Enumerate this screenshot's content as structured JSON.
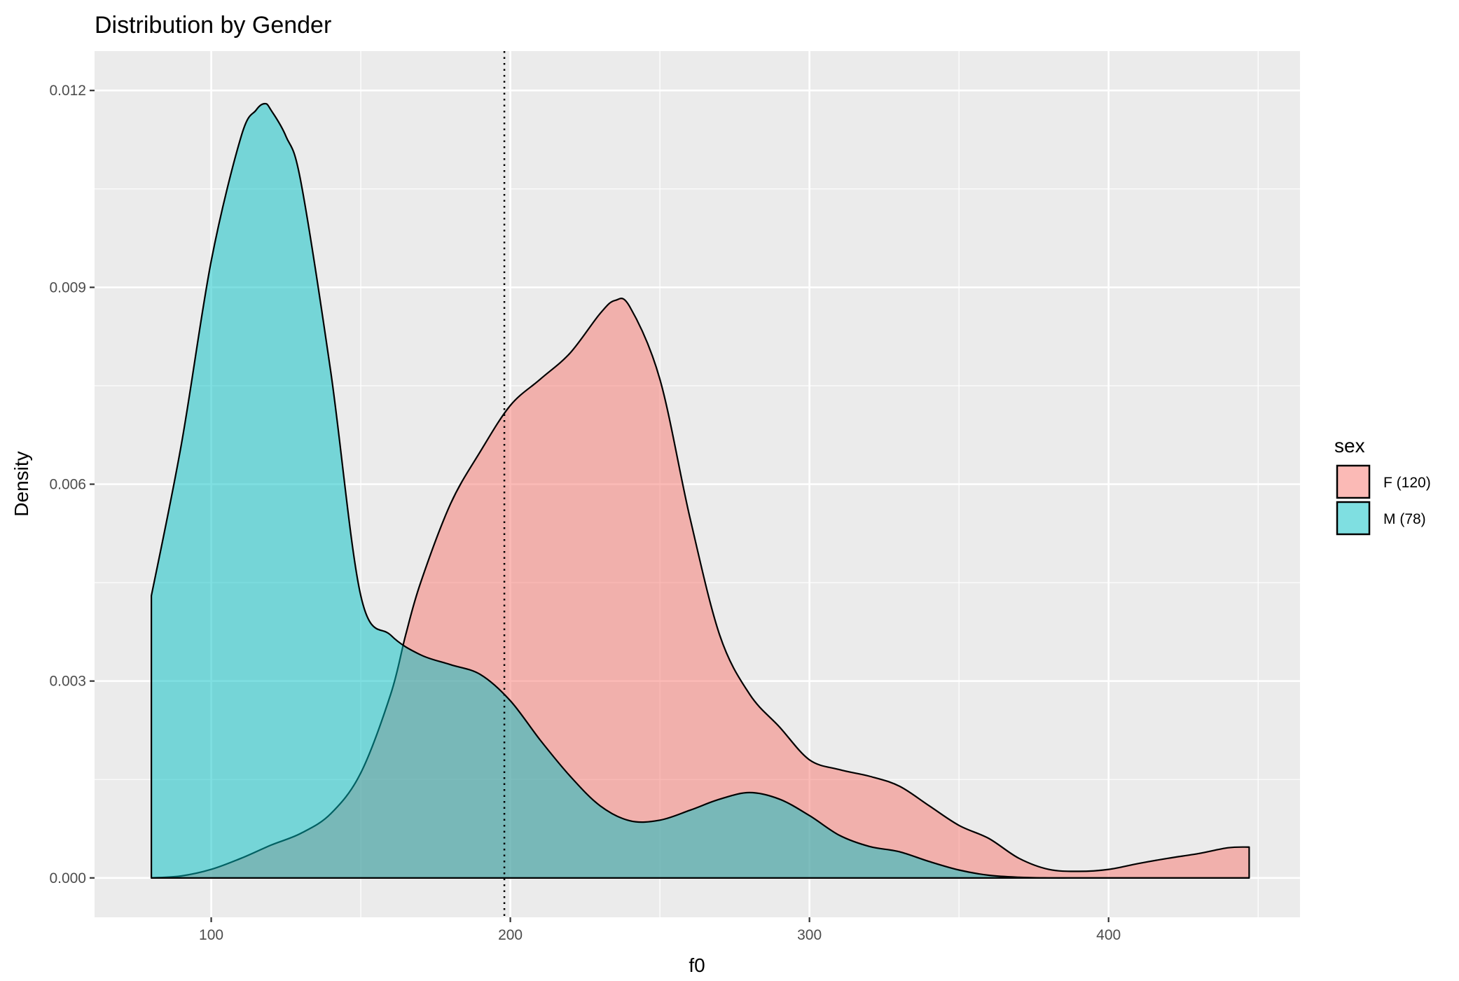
{
  "chart_data": {
    "type": "area",
    "title": "Distribution by Gender",
    "xlabel": "f0",
    "ylabel": "Density",
    "xlim": [
      61,
      464
    ],
    "ylim": [
      -0.0006,
      0.0126
    ],
    "x_ticks": [
      100,
      200,
      300,
      400
    ],
    "x_tick_labels": [
      "100",
      "200",
      "300",
      "400"
    ],
    "y_ticks": [
      0,
      0.003,
      0.006,
      0.009,
      0.012
    ],
    "y_tick_labels": [
      "0.000",
      "0.003",
      "0.006",
      "0.009",
      "0.012"
    ],
    "grid": true,
    "legend": {
      "title": "sex",
      "position": "right"
    },
    "reference_line": {
      "axis": "x",
      "value": 198,
      "style": "dotted"
    },
    "series": [
      {
        "name": "F (120)",
        "color": "#F8766D",
        "x": [
          80,
          90,
          100,
          110,
          120,
          130,
          140,
          150,
          160,
          165,
          170,
          180,
          190,
          200,
          210,
          220,
          230,
          235,
          240,
          250,
          260,
          270,
          280,
          290,
          300,
          310,
          320,
          330,
          340,
          350,
          360,
          370,
          380,
          390,
          400,
          410,
          420,
          430,
          440,
          447
        ],
        "values": [
          0.0,
          3e-05,
          0.00013,
          0.0003,
          0.0005,
          0.00068,
          0.00098,
          0.0016,
          0.0028,
          0.0037,
          0.0045,
          0.0057,
          0.0065,
          0.0072,
          0.0076,
          0.008,
          0.0086,
          0.0088,
          0.0087,
          0.0076,
          0.0055,
          0.0037,
          0.0028,
          0.0023,
          0.0018,
          0.00165,
          0.00155,
          0.0014,
          0.0011,
          0.0008,
          0.0006,
          0.0003,
          0.00013,
          0.0001,
          0.00013,
          0.00022,
          0.0003,
          0.00037,
          0.00046,
          0.00047
        ]
      },
      {
        "name": "M (78)",
        "color": "#00BFC4",
        "x": [
          80,
          90,
          100,
          110,
          115,
          118,
          120,
          125,
          130,
          140,
          150,
          160,
          170,
          180,
          190,
          200,
          210,
          220,
          230,
          240,
          250,
          260,
          270,
          280,
          290,
          300,
          310,
          320,
          330,
          340,
          350,
          360,
          370,
          380,
          390,
          400,
          420,
          447
        ],
        "values": [
          0.0043,
          0.0066,
          0.0094,
          0.0113,
          0.0117,
          0.0118,
          0.0117,
          0.0113,
          0.0106,
          0.0077,
          0.0043,
          0.0037,
          0.0034,
          0.00325,
          0.0031,
          0.0027,
          0.0021,
          0.00155,
          0.0011,
          0.00087,
          0.00088,
          0.00103,
          0.0012,
          0.0013,
          0.0012,
          0.00095,
          0.00065,
          0.00048,
          0.0004,
          0.00025,
          0.00012,
          4e-05,
          1e-05,
          0.0,
          0.0,
          0.0,
          0.0,
          0.0
        ]
      }
    ]
  }
}
